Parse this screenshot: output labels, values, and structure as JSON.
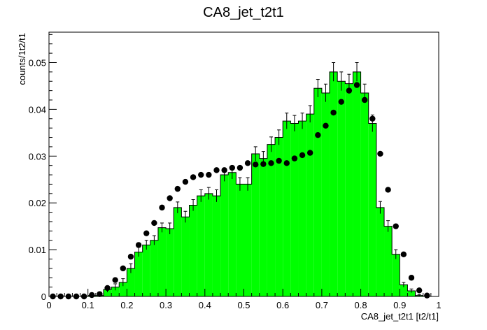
{
  "chart_data": {
    "type": "histogram",
    "title": "CA8_jet_t2t1",
    "xlabel": "CA8_jet_t2t1 [t2/t1]",
    "ylabel": "counts/1t2/t1",
    "xlim": [
      0,
      1
    ],
    "ylim": [
      0,
      0.0565
    ],
    "bin_width": 0.02,
    "x_ticks": [
      "0",
      "0.1",
      "0.2",
      "0.3",
      "0.4",
      "0.5",
      "0.6",
      "0.7",
      "0.8",
      "0.9",
      "1"
    ],
    "y_ticks": [
      "0",
      "0.01",
      "0.02",
      "0.03",
      "0.04",
      "0.05"
    ],
    "grid": false,
    "colors": {
      "histogram_fill": "#00ff00",
      "outline": "#000000",
      "markers": "#000000"
    },
    "series": [
      {
        "style": "filled-histogram-with-errors",
        "bin_low_edges": [
          0.0,
          0.02,
          0.04,
          0.06,
          0.08,
          0.1,
          0.12,
          0.14,
          0.16,
          0.18,
          0.2,
          0.22,
          0.24,
          0.26,
          0.28,
          0.3,
          0.32,
          0.34,
          0.36,
          0.38,
          0.4,
          0.42,
          0.44,
          0.46,
          0.48,
          0.5,
          0.52,
          0.54,
          0.56,
          0.58,
          0.6,
          0.62,
          0.64,
          0.66,
          0.68,
          0.7,
          0.72,
          0.74,
          0.76,
          0.78,
          0.8,
          0.82,
          0.84,
          0.86,
          0.88,
          0.9,
          0.92,
          0.94,
          0.96,
          0.98
        ],
        "values": [
          0,
          0,
          0,
          0,
          0,
          0.0002,
          0.0002,
          0.0015,
          0.002,
          0.003,
          0.006,
          0.0095,
          0.011,
          0.012,
          0.0147,
          0.0145,
          0.019,
          0.017,
          0.0195,
          0.0215,
          0.022,
          0.0215,
          0.026,
          0.0265,
          0.024,
          0.024,
          0.0305,
          0.0295,
          0.0325,
          0.034,
          0.0375,
          0.037,
          0.0375,
          0.039,
          0.0445,
          0.0435,
          0.048,
          0.046,
          0.0455,
          0.048,
          0.0435,
          0.037,
          0.019,
          0.015,
          0.009,
          0.0025,
          0.0012,
          0.0002,
          0,
          0
        ],
        "errors": [
          0,
          0,
          0,
          0,
          0,
          0.0002,
          0.0002,
          0.0006,
          0.0007,
          0.0008,
          0.001,
          0.001,
          0.001,
          0.001,
          0.001,
          0.0012,
          0.0012,
          0.0012,
          0.0012,
          0.0013,
          0.0013,
          0.0013,
          0.0014,
          0.0014,
          0.0014,
          0.0014,
          0.0015,
          0.0015,
          0.0016,
          0.0016,
          0.0017,
          0.0017,
          0.0017,
          0.0018,
          0.0019,
          0.0019,
          0.002,
          0.002,
          0.002,
          0.002,
          0.0019,
          0.0018,
          0.0013,
          0.0012,
          0.001,
          0.0005,
          0.0004,
          0.0002,
          0,
          0
        ]
      },
      {
        "style": "markers",
        "x": [
          0.01,
          0.03,
          0.05,
          0.07,
          0.09,
          0.11,
          0.13,
          0.15,
          0.17,
          0.19,
          0.21,
          0.23,
          0.25,
          0.27,
          0.29,
          0.31,
          0.33,
          0.35,
          0.37,
          0.39,
          0.41,
          0.43,
          0.45,
          0.47,
          0.49,
          0.51,
          0.53,
          0.55,
          0.57,
          0.59,
          0.61,
          0.63,
          0.65,
          0.67,
          0.69,
          0.71,
          0.73,
          0.75,
          0.77,
          0.79,
          0.81,
          0.83,
          0.85,
          0.87,
          0.89,
          0.91,
          0.93,
          0.95,
          0.97
        ],
        "y": [
          0,
          0,
          0,
          0,
          0,
          0.0003,
          0.0005,
          0.0018,
          0.0035,
          0.006,
          0.0085,
          0.011,
          0.0135,
          0.0157,
          0.019,
          0.021,
          0.023,
          0.0245,
          0.0255,
          0.026,
          0.026,
          0.027,
          0.027,
          0.0275,
          0.0275,
          0.0285,
          0.0282,
          0.0283,
          0.0285,
          0.029,
          0.0285,
          0.0295,
          0.0302,
          0.0307,
          0.0345,
          0.0365,
          0.0393,
          0.0416,
          0.044,
          0.0452,
          0.042,
          0.038,
          0.0305,
          0.0228,
          0.015,
          0.009,
          0.004,
          0.0013,
          0.0002
        ]
      }
    ]
  }
}
